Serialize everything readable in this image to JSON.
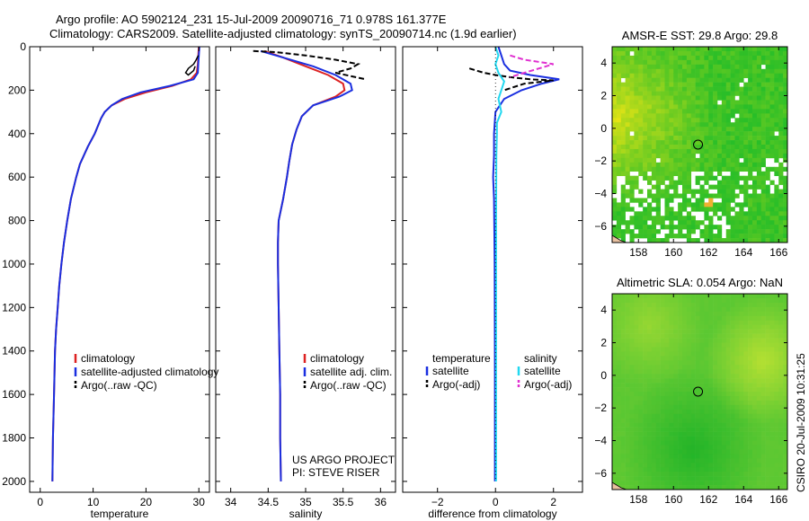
{
  "header": {
    "line1": "Argo profile: AO 5902124_231 15-Jul-2009 20090716_71 0.978S 161.377E",
    "line2": "Climatology: CARS2009. Satellite-adjusted climatology: synTS_20090714.nc (1.9d earlier)"
  },
  "side_label": "CSIRO 20-Jul-2009 10:31:25",
  "project_note": [
    "US ARGO PROJECT",
    "PI: STEVE RISER"
  ],
  "colors": {
    "climatology": "#dd2222",
    "satellite": "#1a2fe0",
    "argo": "#000000",
    "sat_cyan": "#22d8f0",
    "argo_magenta": "#e030d0"
  },
  "chart_data": [
    {
      "type": "line",
      "xlabel": "temperature",
      "ylabel": "",
      "xlim": [
        -2,
        32
      ],
      "ylim": [
        2050,
        0
      ],
      "xticks": [
        0,
        10,
        20,
        30
      ],
      "yticks": [
        0,
        200,
        400,
        600,
        800,
        1000,
        1200,
        1400,
        1600,
        1800,
        2000
      ],
      "legend": [
        "climatology",
        "satellite-adjusted climatology",
        "Argo(..raw -QC)"
      ],
      "series": [
        {
          "name": "climatology",
          "color": "red",
          "x": [
            30.0,
            29.9,
            29.8,
            29.6,
            28.5,
            25.0,
            20.0,
            16.0,
            13.5,
            12.2,
            11.5,
            10.3,
            9.0,
            7.5,
            6.8,
            5.8,
            5.1,
            4.5,
            4.0,
            3.6,
            3.3,
            3.0,
            2.8,
            2.6,
            2.4,
            2.3
          ],
          "y": [
            0,
            40,
            80,
            120,
            150,
            180,
            210,
            240,
            270,
            300,
            330,
            400,
            460,
            540,
            600,
            700,
            800,
            900,
            1000,
            1100,
            1200,
            1300,
            1400,
            1600,
            1800,
            2000
          ]
        },
        {
          "name": "satellite-adjusted climatology",
          "color": "blue",
          "x": [
            30.1,
            30.0,
            29.9,
            29.8,
            29.0,
            24.5,
            19.0,
            15.5,
            13.5,
            12.2,
            11.5,
            10.3,
            9.0,
            7.5,
            6.8,
            5.8,
            5.1,
            4.5,
            4.0,
            3.6,
            3.3,
            3.0,
            2.8,
            2.6,
            2.4,
            2.3
          ],
          "y": [
            0,
            40,
            80,
            120,
            150,
            180,
            210,
            240,
            270,
            300,
            330,
            400,
            460,
            540,
            600,
            700,
            800,
            900,
            1000,
            1100,
            1200,
            1300,
            1400,
            1600,
            1800,
            2000
          ]
        },
        {
          "name": "Argo(..raw -QC)",
          "color": "black",
          "x": [
            29.9,
            29.5,
            29.0,
            28.0,
            27.5,
            28.0,
            29.0,
            29.3
          ],
          "y": [
            40,
            60,
            80,
            100,
            120,
            130,
            110,
            90
          ]
        }
      ]
    },
    {
      "type": "line",
      "xlabel": "salinity",
      "ylabel": "",
      "xlim": [
        33.8,
        36.2
      ],
      "ylim": [
        2050,
        0
      ],
      "xticks": [
        34,
        34.5,
        35,
        35.5,
        36
      ],
      "yticks": [
        0,
        200,
        400,
        600,
        800,
        1000,
        1200,
        1400,
        1600,
        1800,
        2000
      ],
      "legend": [
        "climatology",
        "satellite adj. clim.",
        "Argo(..raw -QC)"
      ],
      "series": [
        {
          "name": "climatology",
          "color": "red",
          "x": [
            34.45,
            34.7,
            35.0,
            35.3,
            35.5,
            35.52,
            35.4,
            35.1,
            34.95,
            34.88,
            34.82,
            34.78,
            34.75,
            34.7,
            34.64,
            34.63,
            34.63,
            34.64,
            34.65,
            34.66,
            34.66,
            34.67
          ],
          "y": [
            20,
            50,
            90,
            130,
            170,
            200,
            230,
            270,
            320,
            380,
            450,
            530,
            600,
            700,
            800,
            900,
            1000,
            1200,
            1400,
            1600,
            1800,
            2000
          ]
        },
        {
          "name": "satellite adj. clim.",
          "color": "blue",
          "x": [
            34.4,
            34.7,
            35.1,
            35.4,
            35.6,
            35.62,
            35.45,
            35.1,
            34.95,
            34.88,
            34.82,
            34.78,
            34.75,
            34.7,
            34.64,
            34.63,
            34.63,
            34.64,
            34.65,
            34.66,
            34.66,
            34.67
          ],
          "y": [
            20,
            50,
            90,
            130,
            170,
            200,
            230,
            270,
            320,
            380,
            450,
            530,
            600,
            700,
            800,
            900,
            1000,
            1200,
            1400,
            1600,
            1800,
            2000
          ]
        },
        {
          "name": "Argo(..raw -QC)",
          "color": "black",
          "x": [
            34.3,
            34.6,
            35.0,
            35.4,
            35.7,
            35.6,
            35.4,
            35.8
          ],
          "y": [
            20,
            25,
            40,
            60,
            80,
            100,
            120,
            150
          ]
        }
      ]
    },
    {
      "type": "line",
      "xlabel": "difference from climatology",
      "ylabel": "",
      "xlim": [
        -3.2,
        3.0
      ],
      "ylim": [
        2050,
        0
      ],
      "xticks": [
        -2,
        0,
        2
      ],
      "yticks": [
        0,
        200,
        400,
        600,
        800,
        1000,
        1200,
        1400,
        1600,
        1800,
        2000
      ],
      "legend_groups": [
        "temperature",
        "salinity"
      ],
      "legend": [
        "satellite",
        "Argo(-adj)",
        "satellite",
        "Argo(-adj)"
      ],
      "series": [
        {
          "name": "temperature satellite",
          "color": "blue",
          "x": [
            0.1,
            0.2,
            0.3,
            0.5,
            1.2,
            2.2,
            1.6,
            0.9,
            0.3,
            0.0,
            -0.05,
            -0.05,
            -0.08,
            -0.05,
            -0.03,
            -0.02,
            -0.02
          ],
          "y": [
            0,
            40,
            80,
            110,
            130,
            150,
            170,
            200,
            240,
            300,
            400,
            500,
            600,
            700,
            1000,
            1500,
            2000
          ]
        },
        {
          "name": "temperature Argo(-adj)",
          "color": "black",
          "x": [
            -0.9,
            -0.4,
            0.0,
            0.5,
            1.2,
            2.0,
            1.0,
            0.3
          ],
          "y": [
            100,
            120,
            130,
            140,
            150,
            155,
            170,
            200
          ]
        },
        {
          "name": "salinity satellite",
          "color": "cyan",
          "x": [
            0.0,
            0.1,
            0.0,
            0.1,
            0.3,
            0.2,
            0.1,
            0.2,
            0.05,
            0.05,
            0.03,
            0.02,
            0.02,
            0.02
          ],
          "y": [
            0,
            40,
            80,
            120,
            160,
            200,
            240,
            300,
            350,
            400,
            500,
            800,
            1400,
            2000
          ]
        },
        {
          "name": "salinity Argo(-adj)",
          "color": "magenta",
          "x": [
            0.5,
            1.0,
            2.0,
            1.5,
            1.0,
            0.5
          ],
          "y": [
            40,
            60,
            80,
            100,
            120,
            140
          ]
        }
      ]
    },
    {
      "type": "heatmap",
      "title": "AMSR-E SST: 29.8 Argo: 29.8",
      "xlim": [
        156.5,
        166.5
      ],
      "ylim": [
        -7,
        5
      ],
      "xticks": [
        158,
        160,
        162,
        164,
        166
      ],
      "yticks": [
        -6,
        -4,
        -2,
        0,
        2,
        4
      ],
      "marker": {
        "x": 161.4,
        "y": -1.0
      }
    },
    {
      "type": "heatmap",
      "title": "Altimetric SLA: 0.054 Argo: NaN",
      "xlim": [
        156.5,
        166.5
      ],
      "ylim": [
        -7,
        5
      ],
      "xticks": [
        158,
        160,
        162,
        164,
        166
      ],
      "yticks": [
        -6,
        -4,
        -2,
        0,
        2,
        4
      ],
      "marker": {
        "x": 161.4,
        "y": -1.0
      }
    }
  ]
}
